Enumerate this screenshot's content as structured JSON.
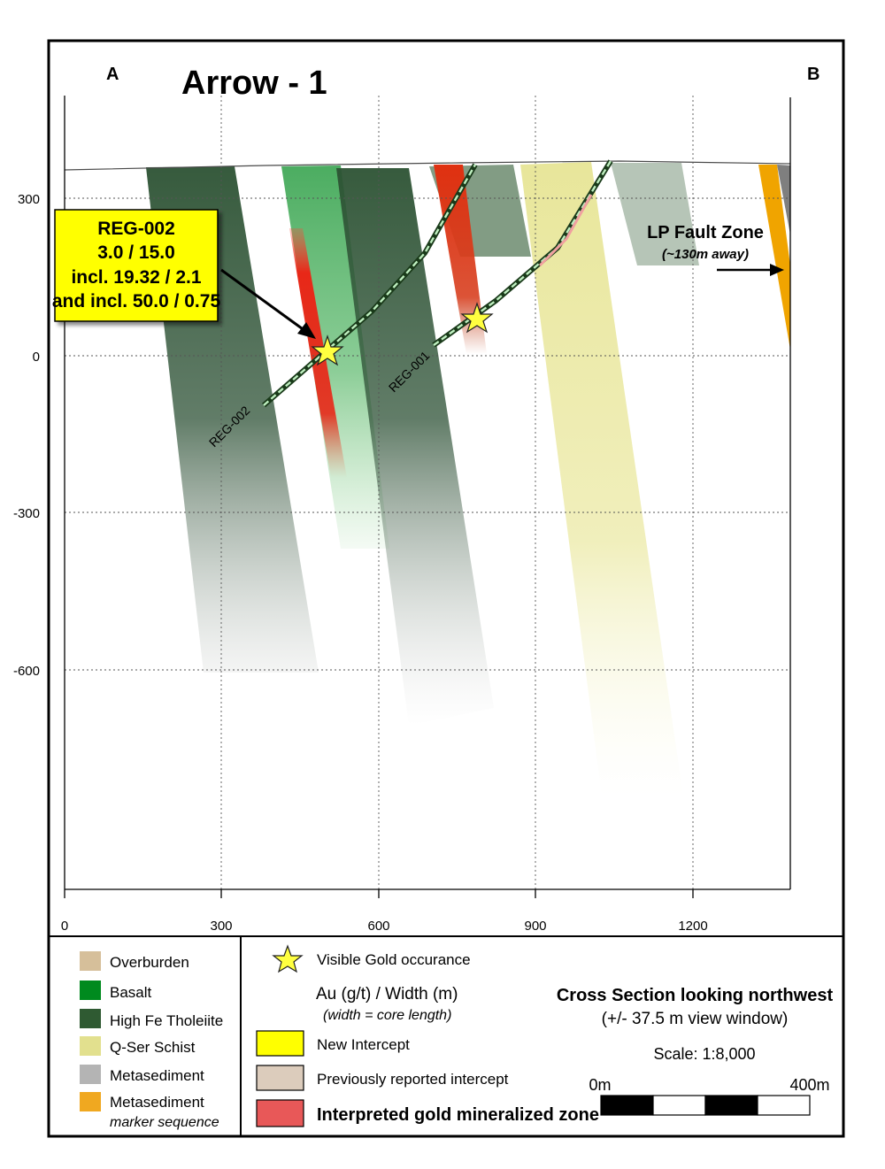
{
  "header": {
    "section_a": "A",
    "section_b": "B",
    "title": "Arrow - 1"
  },
  "axes": {
    "y_ticks": [
      "300",
      "0",
      "-300",
      "-600"
    ],
    "x_ticks": [
      "0",
      "300",
      "600",
      "900",
      "1200"
    ]
  },
  "callout": {
    "hole": "REG-002",
    "line1": "3.0 / 15.0",
    "line2": "incl. 19.32 / 2.1",
    "line3": "and incl. 50.0 / 0.75",
    "fill": "#ffff00"
  },
  "drillholes": [
    {
      "label": "REG-002"
    },
    {
      "label": "REG-001"
    }
  ],
  "fault": {
    "label": "LP Fault Zone",
    "sublabel": "(~130m away)"
  },
  "legend": {
    "lithology": [
      {
        "label": "Overburden",
        "color": "#d6bf9a"
      },
      {
        "label": "Basalt",
        "color": "#008a1e"
      },
      {
        "label": "High Fe Tholeiite",
        "color": "#2f5a32"
      },
      {
        "label": "Q-Ser Schist",
        "color": "#e2e08e"
      },
      {
        "label": "Metasediment",
        "color": "#b4b4b4"
      },
      {
        "label": "Metasediment",
        "sublabel": "marker sequence",
        "color": "#f0a820"
      }
    ],
    "visible_gold": "Visible Gold occurance",
    "au_header": "Au (g/t) / Width (m)",
    "au_subheader": "(width = core length)",
    "new_intercept": {
      "label": "New Intercept",
      "color": "#ffff00"
    },
    "previous_intercept": {
      "label": "Previously reported  intercept",
      "color": "#dcccbc"
    },
    "mineralized_zone": {
      "label": "Interpreted gold mineralized zone",
      "color": "#e85858"
    }
  },
  "section_info": {
    "title": "Cross Section looking northwest",
    "window": "(+/- 37.5 m view window)",
    "scale": "Scale: 1:8,000",
    "scale_start": "0m",
    "scale_end": "400m"
  },
  "colors": {
    "basalt": "#0a8f2a",
    "tholeiite": "#2f5537",
    "schist": "#e6e49a",
    "mineralized": "#e03020",
    "metasediment_marker": "#f0a000",
    "metasediment": "#888888"
  }
}
